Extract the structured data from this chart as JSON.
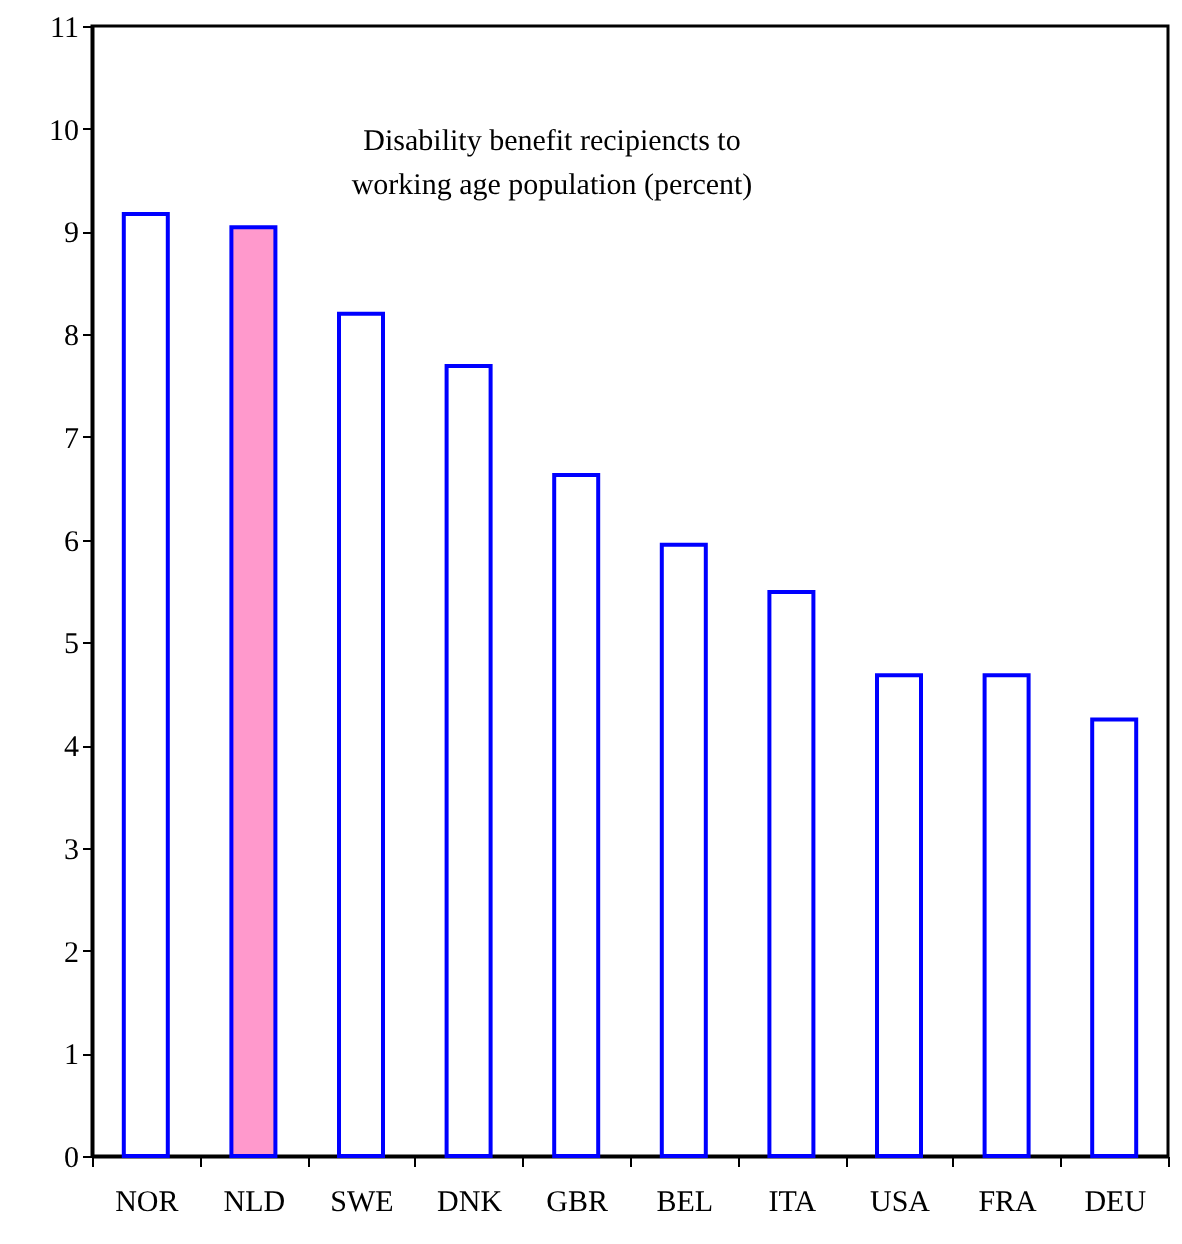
{
  "chart_data": {
    "type": "bar",
    "title": "Disability benefit recipiencts to working age population (percent)",
    "categories": [
      "NOR",
      "NLD",
      "SWE",
      "DNK",
      "GBR",
      "BEL",
      "ITA",
      "USA",
      "FRA",
      "DEU"
    ],
    "values": [
      9.17,
      9.04,
      8.2,
      7.69,
      6.63,
      5.95,
      5.49,
      4.68,
      4.68,
      4.25
    ],
    "color": "#0000ff",
    "colors": [
      "#ffffff",
      "#ff99cc",
      "#ffffff",
      "#ffffff",
      "#ffffff",
      "#ffffff",
      "#ffffff",
      "#ffffff",
      "#ffffff",
      "#ffffff"
    ],
    "ylim": [
      0,
      11
    ],
    "yticks": [
      0,
      1,
      2,
      3,
      4,
      5,
      6,
      7,
      8,
      9,
      10,
      11
    ],
    "grid": false
  }
}
